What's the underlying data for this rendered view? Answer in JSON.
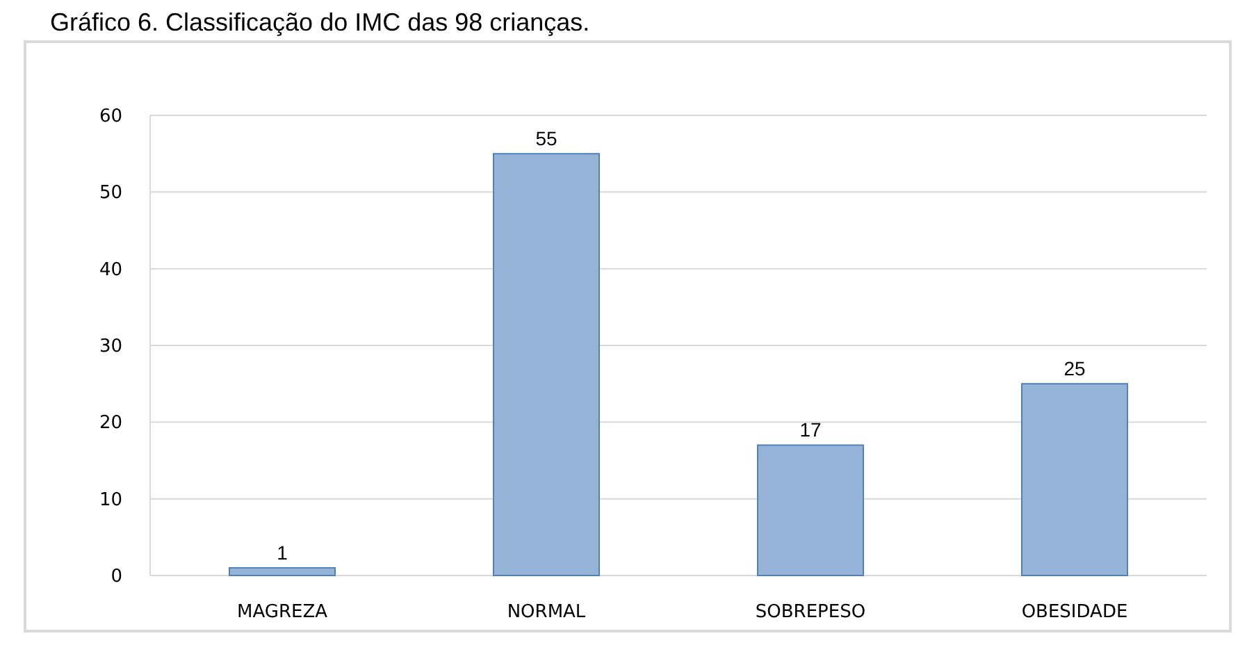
{
  "chart_data": {
    "type": "bar",
    "title": "Gráfico 6. Classificação do IMC das 98 crianças.",
    "categories": [
      "MAGREZA",
      "NORMAL",
      "SOBREPESO",
      "OBESIDADE"
    ],
    "values": [
      1,
      55,
      17,
      25
    ],
    "color": "#95b3d7",
    "ylim": [
      0,
      60
    ],
    "yticks": [
      0,
      10,
      20,
      30,
      40,
      50,
      60
    ],
    "grid": "y",
    "data_labels": true
  }
}
